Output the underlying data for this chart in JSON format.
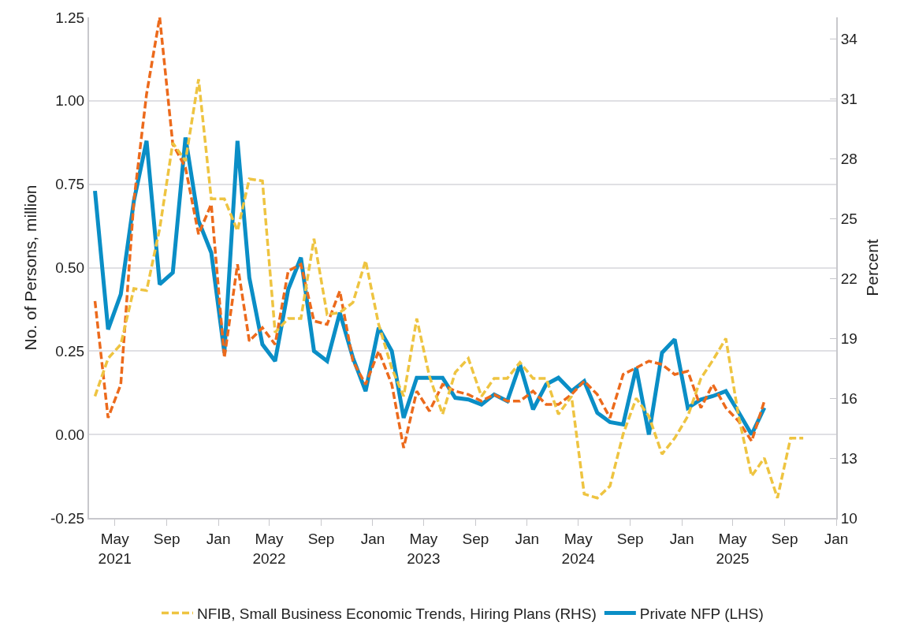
{
  "chart_data": {
    "type": "line",
    "ylabel": "No. of Persons, million",
    "y2label": "Percent",
    "x": [
      "2021-03-15",
      "2021-04-15",
      "2021-05-15",
      "2021-06-15",
      "2021-07-15",
      "2021-08-15",
      "2021-09-15",
      "2021-10-15",
      "2021-11-15",
      "2021-12-15",
      "2022-01-15",
      "2022-02-15",
      "2022-03-15",
      "2022-04-15",
      "2022-05-15",
      "2022-06-15",
      "2022-07-15",
      "2022-08-15",
      "2022-09-15",
      "2022-10-15",
      "2022-11-15",
      "2022-12-15",
      "2023-01-15",
      "2023-02-15",
      "2023-03-15",
      "2023-04-15",
      "2023-05-15",
      "2023-06-15",
      "2023-07-15",
      "2023-08-15",
      "2023-09-15",
      "2023-10-15",
      "2023-11-15",
      "2023-12-15",
      "2024-01-15",
      "2024-02-15",
      "2024-03-15",
      "2024-04-15",
      "2024-05-15",
      "2024-06-15",
      "2024-07-15",
      "2024-08-15",
      "2024-09-15",
      "2024-10-15",
      "2024-11-15",
      "2024-12-15",
      "2025-01-15",
      "2025-02-15",
      "2025-03-15",
      "2025-04-15",
      "2025-05-15",
      "2025-06-15",
      "2025-07-15",
      "2025-08-15",
      "2025-09-15",
      "2025-10-15"
    ],
    "series": [
      {
        "name": "NFIB, Small Business Economic Trends, Hiring Plans (RHS)",
        "color": "#eec441",
        "line_style": "dashed",
        "axis": "y2",
        "values": [
          16.1,
          18.0,
          18.7,
          21.5,
          21.4,
          24.5,
          28.8,
          27.9,
          32.0,
          26.0,
          26.0,
          24.4,
          27.0,
          26.9,
          19.3,
          20.0,
          20.0,
          24.0,
          20.2,
          20.3,
          20.8,
          22.9,
          19.7,
          17.5,
          16.1,
          20.0,
          17.1,
          15.2,
          17.3,
          18.0,
          16.1,
          17.0,
          17.0,
          17.8,
          17.0,
          17.0,
          15.2,
          16.1,
          11.2,
          11.0,
          11.6,
          14.2,
          16.0,
          15.1,
          13.2,
          14.0,
          15.1,
          17.0,
          17.9,
          19.0,
          15.1,
          12.1,
          13.0,
          11.0,
          14.0,
          14.0
        ]
      },
      {
        "name": "Private NFP (LHS)",
        "color": "#0a8ec6",
        "line_style": "solid",
        "values": [
          0.73,
          0.315,
          0.42,
          0.7,
          0.88,
          0.45,
          0.485,
          0.89,
          0.64,
          0.545,
          0.245,
          0.88,
          0.47,
          0.27,
          0.22,
          0.435,
          0.53,
          0.25,
          0.22,
          0.365,
          0.23,
          0.13,
          0.32,
          0.25,
          0.05,
          0.17,
          0.17,
          0.17,
          0.11,
          0.105,
          0.09,
          0.12,
          0.1,
          0.21,
          0.075,
          0.15,
          0.17,
          0.13,
          0.16,
          0.065,
          0.037,
          0.03,
          0.2,
          0.0,
          0.245,
          0.285,
          0.08,
          0.105,
          0.115,
          0.13,
          0.067,
          0.0,
          0.08,
          null,
          null,
          null
        ]
      },
      {
        "color": "#ec6a1c",
        "line_style": "dashed",
        "values": [
          0.4,
          0.05,
          0.15,
          0.7,
          1.02,
          1.25,
          0.87,
          0.8,
          0.6,
          0.69,
          0.23,
          0.51,
          0.28,
          0.32,
          0.27,
          0.49,
          0.51,
          0.34,
          0.33,
          0.43,
          0.22,
          0.15,
          0.25,
          0.15,
          -0.04,
          0.13,
          0.07,
          0.15,
          0.13,
          0.12,
          0.1,
          0.12,
          0.1,
          0.1,
          0.13,
          0.09,
          0.09,
          0.12,
          0.16,
          0.12,
          0.05,
          0.18,
          0.2,
          0.22,
          0.21,
          0.18,
          0.19,
          0.08,
          0.15,
          0.08,
          0.04,
          -0.02,
          0.1,
          null,
          null,
          null
        ]
      }
    ],
    "xlim": [
      "2021-03-01",
      "2026-01-01"
    ],
    "xticks": [
      {
        "value": "2021-05-01",
        "label": "May\n2021"
      },
      {
        "value": "2021-09-01",
        "label": "Sep"
      },
      {
        "value": "2022-01-01",
        "label": "Jan"
      },
      {
        "value": "2022-05-01",
        "label": "May\n2022"
      },
      {
        "value": "2022-09-01",
        "label": "Sep"
      },
      {
        "value": "2023-01-01",
        "label": "Jan"
      },
      {
        "value": "2023-05-01",
        "label": "May\n2023"
      },
      {
        "value": "2023-09-01",
        "label": "Sep"
      },
      {
        "value": "2024-01-01",
        "label": "Jan"
      },
      {
        "value": "2024-05-01",
        "label": "May\n2024"
      },
      {
        "value": "2024-09-01",
        "label": "Sep"
      },
      {
        "value": "2025-01-01",
        "label": "Jan"
      },
      {
        "value": "2025-05-01",
        "label": "May\n2025"
      },
      {
        "value": "2025-09-01",
        "label": "Sep"
      },
      {
        "value": "2026-01-01",
        "label": "Jan"
      }
    ],
    "ylim": [
      -0.25,
      1.25
    ],
    "yticks": [
      {
        "value": -0.25,
        "label": "-0.25"
      },
      {
        "value": 0,
        "label": "0.00"
      },
      {
        "value": 0.25,
        "label": "0.25"
      },
      {
        "value": 0.5,
        "label": "0.50"
      },
      {
        "value": 0.75,
        "label": "0.75"
      },
      {
        "value": 1,
        "label": "1.00"
      },
      {
        "value": 1.25,
        "label": "1.25"
      }
    ],
    "y2lim": [
      10,
      35.1
    ],
    "y2ticks": [
      10,
      13,
      16,
      19,
      22,
      25,
      28,
      31,
      34
    ],
    "grid": "y",
    "legend": "bottom",
    "marker": "none"
  }
}
